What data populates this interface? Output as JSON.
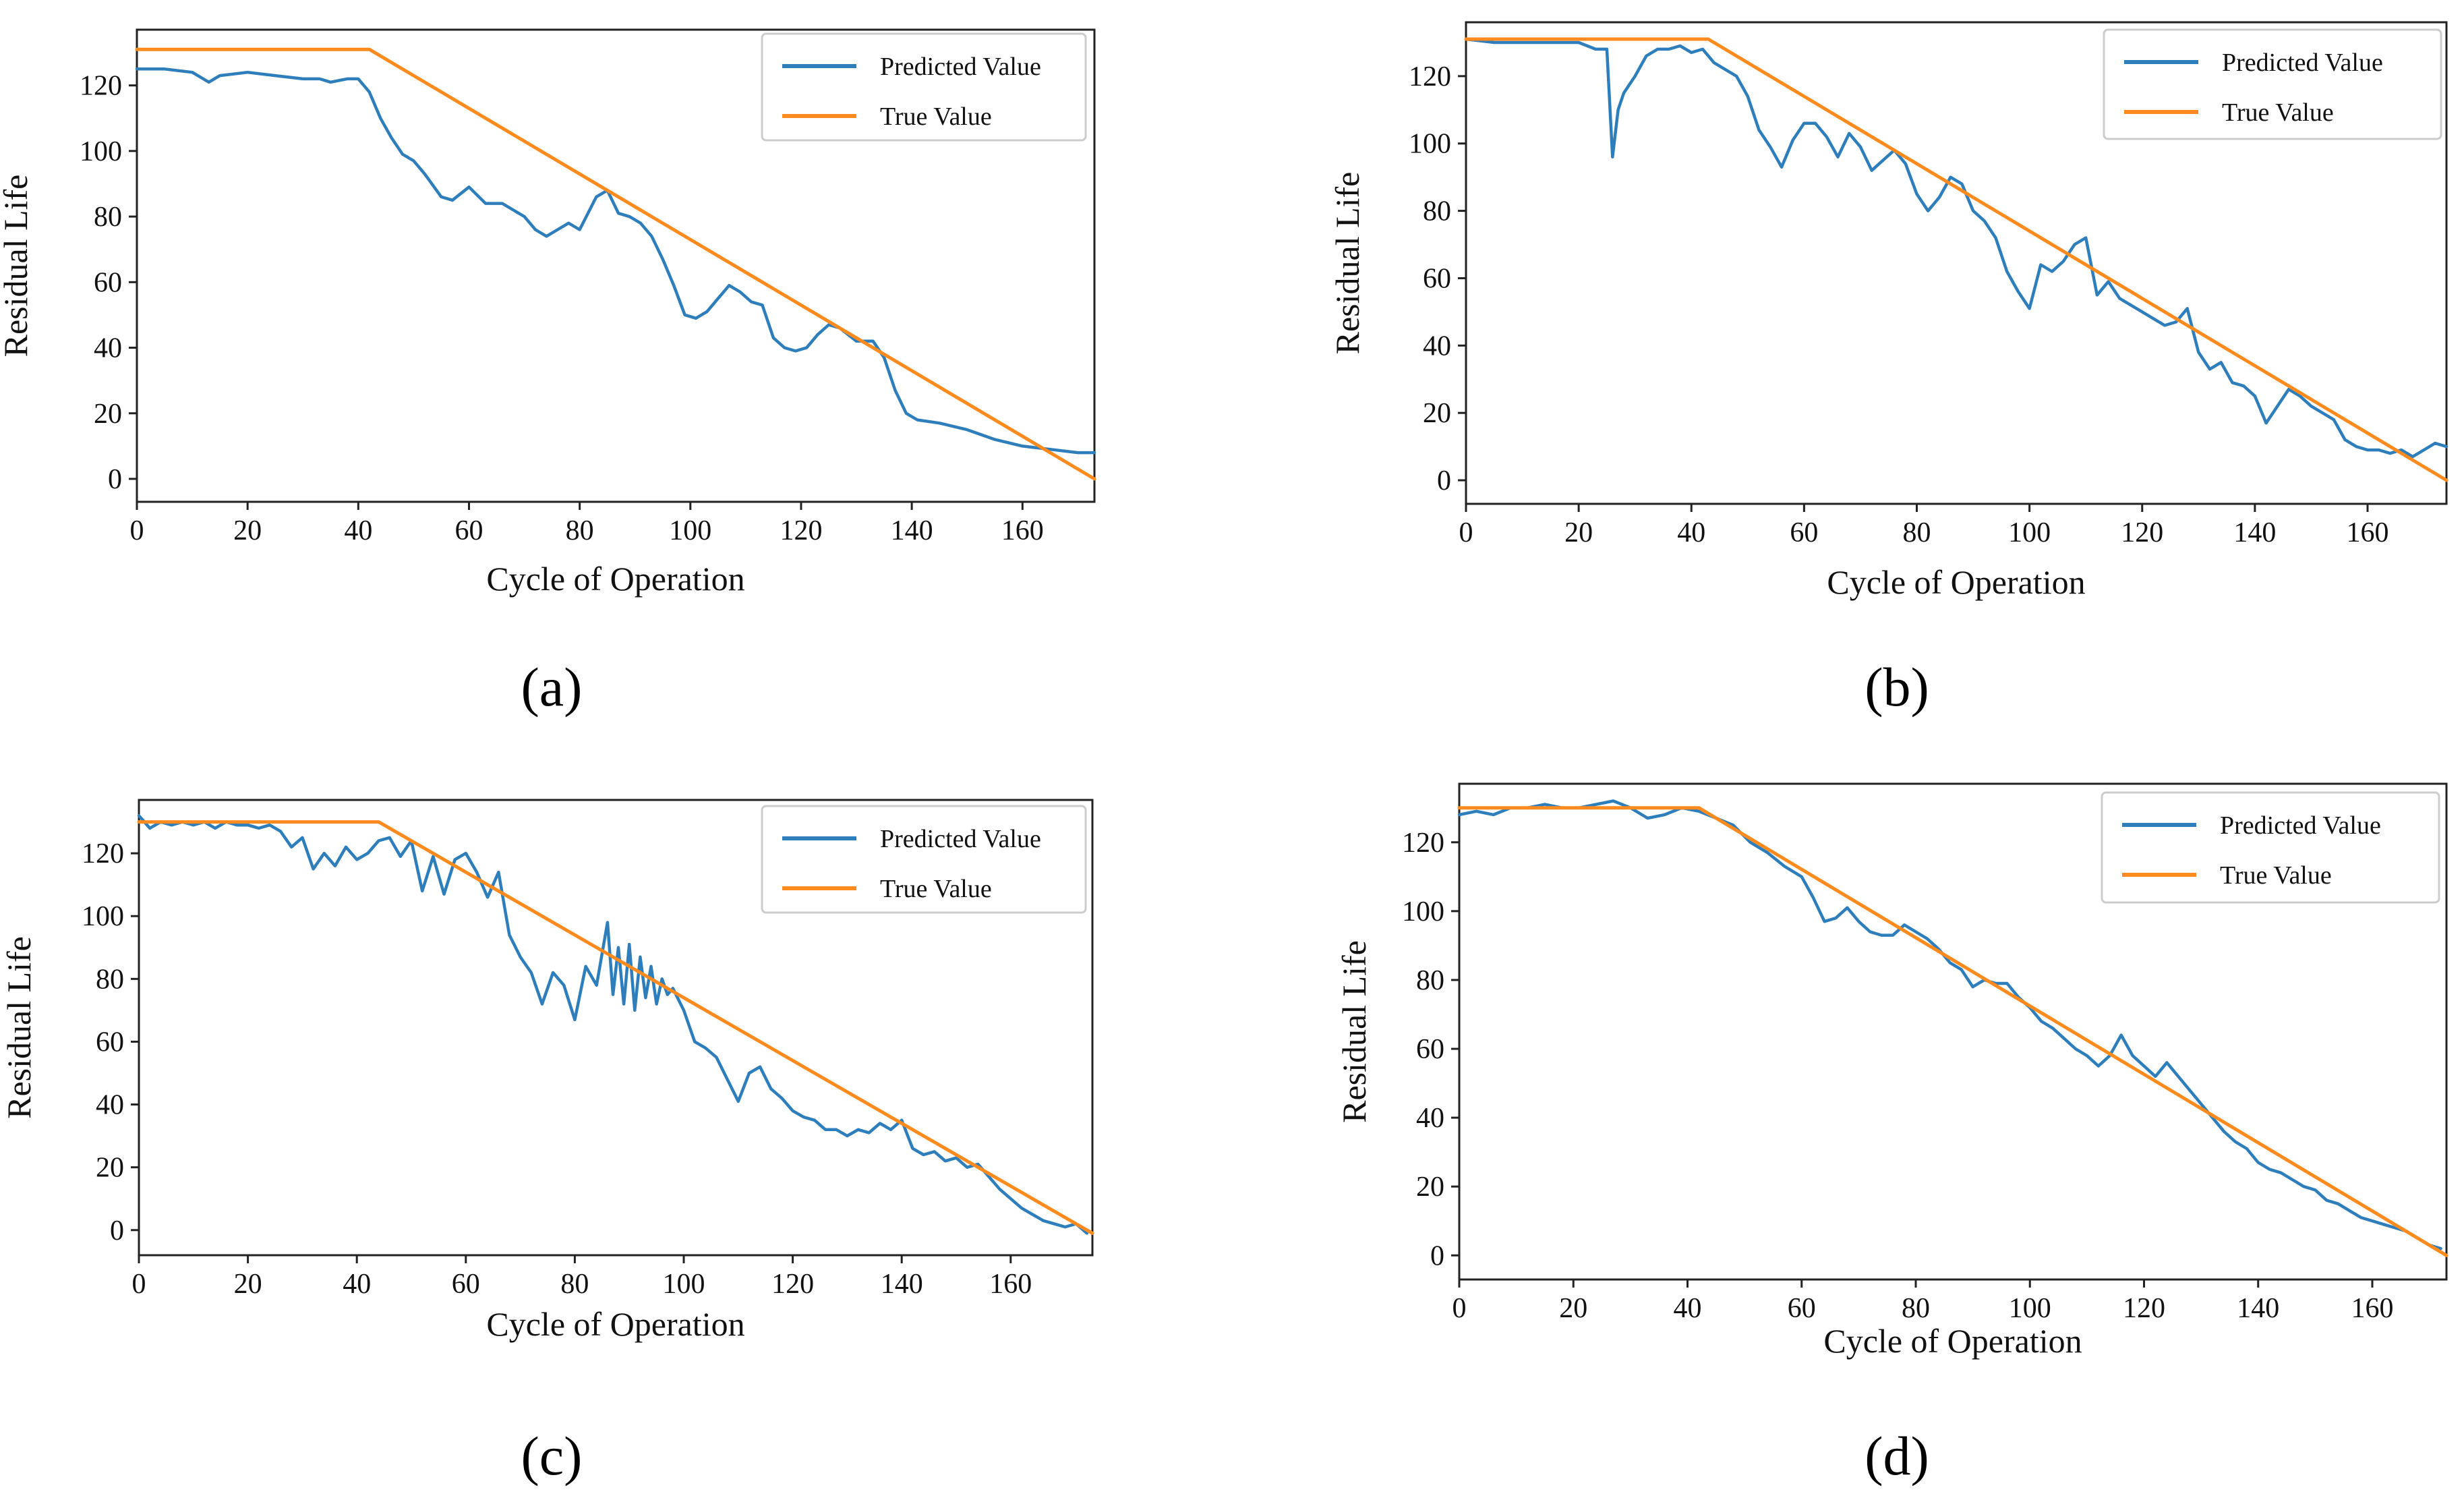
{
  "figure": {
    "panel_labels": [
      "(a)",
      "(b)",
      "(c)",
      "(d)"
    ]
  },
  "colors": {
    "predicted": "#2e7ebc",
    "true": "#ff8b1f",
    "axis": "#222222",
    "legend_border": "#cccccc"
  },
  "chart_data": [
    {
      "type": "line",
      "panel": "(a)",
      "xlabel": "Cycle of Operation",
      "ylabel": "Residual Life",
      "xlim": [
        0,
        173
      ],
      "ylim": [
        -7,
        137
      ],
      "xticks": [
        0,
        20,
        40,
        60,
        80,
        100,
        120,
        140,
        160
      ],
      "yticks": [
        0,
        20,
        40,
        60,
        80,
        100,
        120
      ],
      "legend_position": "top-right",
      "grid": false,
      "series": [
        {
          "name": "Predicted Value",
          "color": "#2e7ebc",
          "x": [
            0,
            5,
            10,
            13,
            15,
            20,
            25,
            30,
            33,
            35,
            38,
            40,
            42,
            44,
            46,
            48,
            50,
            52,
            55,
            57,
            60,
            63,
            66,
            70,
            72,
            74,
            76,
            78,
            80,
            83,
            85,
            87,
            89,
            91,
            93,
            95,
            97,
            99,
            101,
            103,
            105,
            107,
            109,
            111,
            113,
            115,
            117,
            119,
            121,
            123,
            125,
            127,
            130,
            133,
            135,
            137,
            139,
            141,
            145,
            150,
            155,
            160,
            165,
            170,
            173
          ],
          "y": [
            125,
            125,
            124,
            121,
            123,
            124,
            123,
            122,
            122,
            121,
            122,
            122,
            118,
            110,
            104,
            99,
            97,
            93,
            86,
            85,
            89,
            84,
            84,
            80,
            76,
            74,
            76,
            78,
            76,
            86,
            88,
            81,
            80,
            78,
            74,
            67,
            59,
            50,
            49,
            51,
            55,
            59,
            57,
            54,
            53,
            43,
            40,
            39,
            40,
            44,
            47,
            46,
            42,
            42,
            37,
            27,
            20,
            18,
            17,
            15,
            12,
            10,
            9,
            8,
            8
          ]
        },
        {
          "name": "True Value",
          "color": "#ff8b1f",
          "x": [
            0,
            42,
            173
          ],
          "y": [
            131,
            131,
            0
          ]
        }
      ]
    },
    {
      "type": "line",
      "panel": "(b)",
      "xlabel": "Cycle of Operation",
      "ylabel": "Residual Life",
      "xlim": [
        0,
        174
      ],
      "ylim": [
        -7,
        136
      ],
      "xticks": [
        0,
        20,
        40,
        60,
        80,
        100,
        120,
        140,
        160
      ],
      "yticks": [
        0,
        20,
        40,
        60,
        80,
        100,
        120
      ],
      "legend_position": "top-right",
      "grid": false,
      "series": [
        {
          "name": "Predicted Value",
          "color": "#2e7ebc",
          "x": [
            0,
            5,
            10,
            15,
            20,
            23,
            25,
            26,
            27,
            28,
            30,
            32,
            34,
            36,
            38,
            40,
            42,
            44,
            46,
            48,
            50,
            52,
            54,
            56,
            58,
            60,
            62,
            64,
            66,
            68,
            70,
            72,
            74,
            76,
            78,
            80,
            82,
            84,
            86,
            88,
            90,
            92,
            94,
            96,
            98,
            100,
            102,
            104,
            106,
            108,
            110,
            112,
            114,
            116,
            118,
            120,
            122,
            124,
            126,
            128,
            130,
            132,
            134,
            136,
            138,
            140,
            142,
            144,
            146,
            148,
            150,
            152,
            154,
            156,
            158,
            160,
            162,
            164,
            166,
            168,
            170,
            172,
            174
          ],
          "y": [
            131,
            130,
            130,
            130,
            130,
            128,
            128,
            96,
            110,
            115,
            120,
            126,
            128,
            128,
            129,
            127,
            128,
            124,
            122,
            120,
            114,
            104,
            99,
            93,
            101,
            106,
            106,
            102,
            96,
            103,
            99,
            92,
            95,
            98,
            94,
            85,
            80,
            84,
            90,
            88,
            80,
            77,
            72,
            62,
            56,
            51,
            64,
            62,
            65,
            70,
            72,
            55,
            59,
            54,
            52,
            50,
            48,
            46,
            47,
            51,
            38,
            33,
            35,
            29,
            28,
            25,
            17,
            22,
            27,
            25,
            22,
            20,
            18,
            12,
            10,
            9,
            9,
            8,
            9,
            7,
            9,
            11,
            10
          ]
        },
        {
          "name": "True Value",
          "color": "#ff8b1f",
          "x": [
            0,
            43,
            174
          ],
          "y": [
            131,
            131,
            0
          ]
        }
      ]
    },
    {
      "type": "line",
      "panel": "(c)",
      "xlabel": "Cycle of Operation",
      "ylabel": "Residual Life",
      "xlim": [
        0,
        175
      ],
      "ylim": [
        -8,
        137
      ],
      "xticks": [
        0,
        20,
        40,
        60,
        80,
        100,
        120,
        140,
        160
      ],
      "yticks": [
        0,
        20,
        40,
        60,
        80,
        100,
        120
      ],
      "legend_position": "top-right",
      "grid": false,
      "series": [
        {
          "name": "Predicted Value",
          "color": "#2e7ebc",
          "x": [
            0,
            2,
            4,
            6,
            8,
            10,
            12,
            14,
            16,
            18,
            20,
            22,
            24,
            26,
            28,
            30,
            32,
            34,
            36,
            38,
            40,
            42,
            44,
            46,
            48,
            50,
            52,
            54,
            56,
            58,
            60,
            62,
            64,
            66,
            68,
            70,
            72,
            74,
            76,
            78,
            80,
            82,
            84,
            86,
            87,
            88,
            89,
            90,
            91,
            92,
            93,
            94,
            95,
            96,
            97,
            98,
            100,
            102,
            104,
            106,
            108,
            110,
            112,
            114,
            116,
            118,
            120,
            122,
            124,
            126,
            128,
            130,
            132,
            134,
            136,
            138,
            140,
            142,
            144,
            146,
            148,
            150,
            152,
            154,
            156,
            158,
            160,
            162,
            164,
            166,
            168,
            170,
            172,
            174
          ],
          "y": [
            132,
            128,
            130,
            129,
            130,
            129,
            130,
            128,
            130,
            129,
            129,
            128,
            129,
            127,
            122,
            125,
            115,
            120,
            116,
            122,
            118,
            120,
            124,
            125,
            119,
            124,
            108,
            119,
            107,
            118,
            120,
            114,
            106,
            114,
            94,
            87,
            82,
            72,
            82,
            78,
            67,
            84,
            78,
            98,
            75,
            90,
            72,
            91,
            70,
            87,
            74,
            84,
            72,
            80,
            75,
            77,
            70,
            60,
            58,
            55,
            48,
            41,
            50,
            52,
            45,
            42,
            38,
            36,
            35,
            32,
            32,
            30,
            32,
            31,
            34,
            32,
            35,
            26,
            24,
            25,
            22,
            23,
            20,
            21,
            17,
            13,
            10,
            7,
            5,
            3,
            2,
            1,
            2,
            -1
          ]
        },
        {
          "name": "True Value",
          "color": "#ff8b1f",
          "x": [
            0,
            44,
            175
          ],
          "y": [
            130,
            130,
            -1
          ]
        }
      ]
    },
    {
      "type": "line",
      "panel": "(d)",
      "xlabel": "Cycle of Operation",
      "ylabel": "Residual Life",
      "xlim": [
        0,
        173
      ],
      "ylim": [
        -7,
        137
      ],
      "xticks": [
        0,
        20,
        40,
        60,
        80,
        100,
        120,
        140,
        160
      ],
      "yticks": [
        0,
        20,
        40,
        60,
        80,
        100,
        120
      ],
      "legend_position": "top-right",
      "grid": false,
      "series": [
        {
          "name": "Predicted Value",
          "color": "#2e7ebc",
          "x": [
            0,
            3,
            6,
            9,
            12,
            15,
            18,
            21,
            24,
            27,
            30,
            33,
            36,
            39,
            42,
            45,
            48,
            51,
            54,
            57,
            60,
            62,
            64,
            66,
            68,
            70,
            72,
            74,
            76,
            78,
            80,
            82,
            84,
            86,
            88,
            90,
            92,
            94,
            96,
            98,
            100,
            102,
            104,
            106,
            108,
            110,
            112,
            114,
            116,
            118,
            120,
            122,
            124,
            126,
            128,
            130,
            132,
            134,
            136,
            138,
            140,
            142,
            144,
            146,
            148,
            150,
            152,
            154,
            156,
            158,
            160,
            162,
            164,
            166,
            168,
            170,
            172
          ],
          "y": [
            128,
            129,
            128,
            130,
            130,
            131,
            130,
            130,
            131,
            132,
            130,
            127,
            128,
            130,
            129,
            127,
            125,
            120,
            117,
            113,
            110,
            104,
            97,
            98,
            101,
            97,
            94,
            93,
            93,
            96,
            94,
            92,
            89,
            85,
            83,
            78,
            80,
            79,
            79,
            75,
            72,
            68,
            66,
            63,
            60,
            58,
            55,
            58,
            64,
            58,
            55,
            52,
            56,
            52,
            48,
            44,
            40,
            36,
            33,
            31,
            27,
            25,
            24,
            22,
            20,
            19,
            16,
            15,
            13,
            11,
            10,
            9,
            8,
            7,
            5,
            3,
            2
          ]
        },
        {
          "name": "True Value",
          "color": "#ff8b1f",
          "x": [
            0,
            42,
            173
          ],
          "y": [
            130,
            130,
            0
          ]
        }
      ]
    }
  ]
}
